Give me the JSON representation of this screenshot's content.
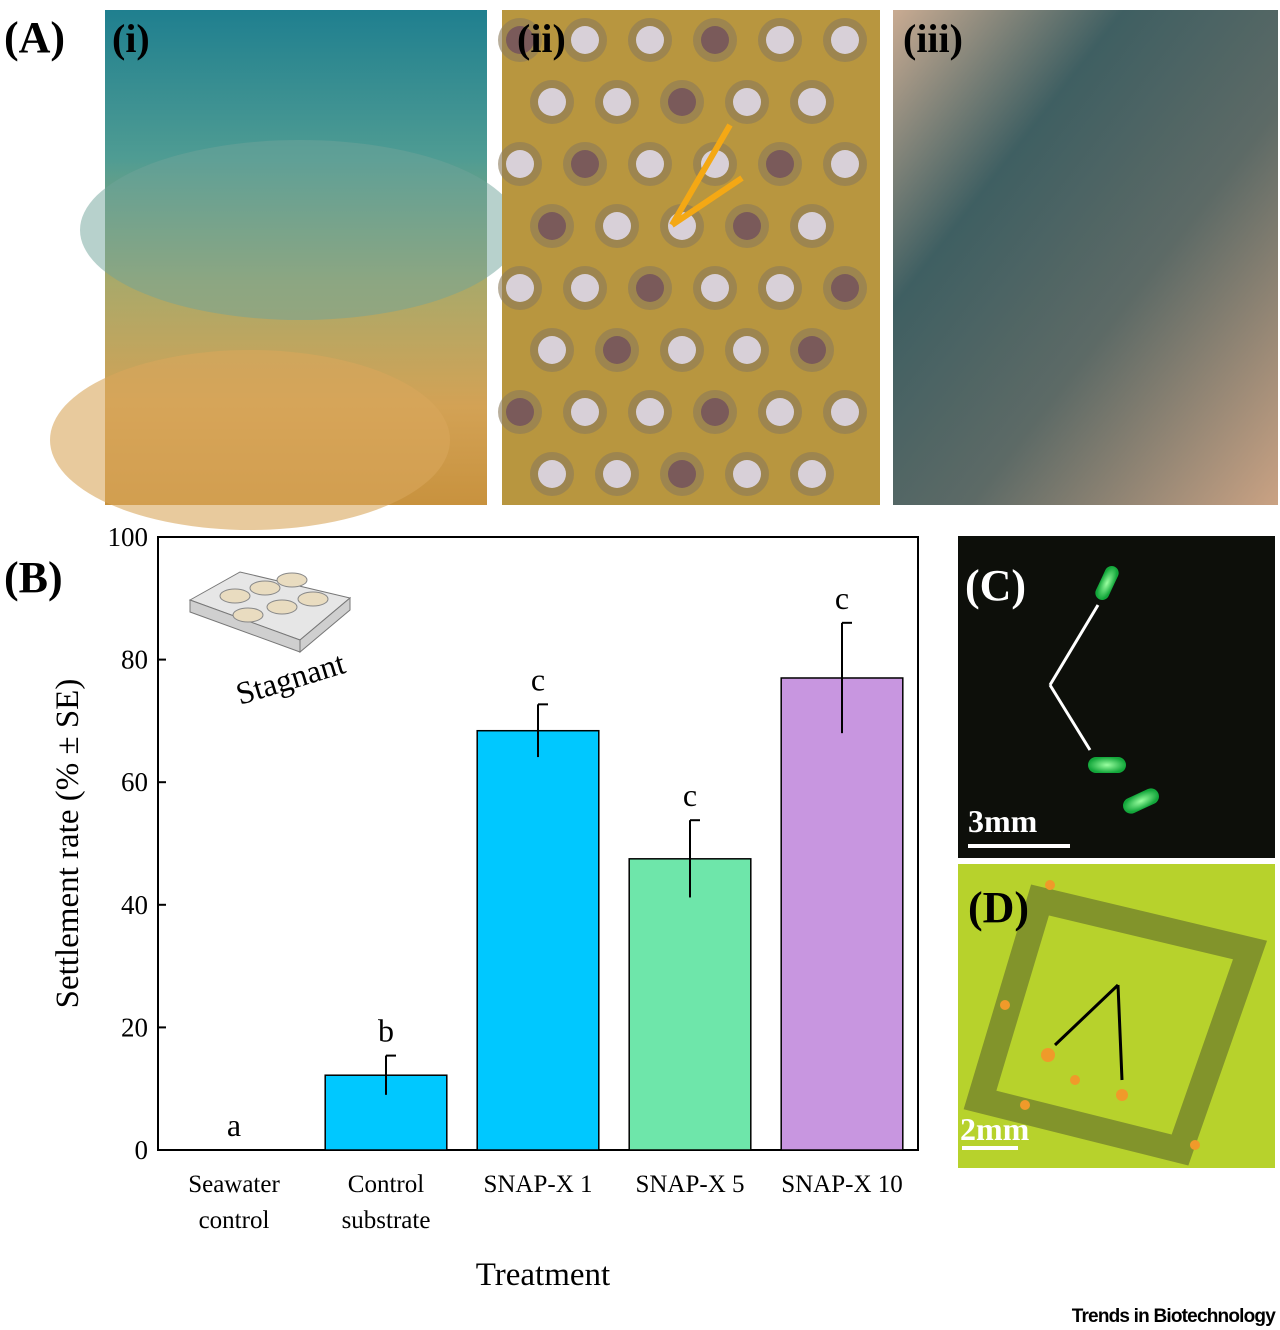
{
  "panels": {
    "A": "(A)",
    "A_i": "(i)",
    "A_ii": "(ii)",
    "A_iii": "(iii)",
    "B": "(B)",
    "C": "(C)",
    "D": "(D)"
  },
  "scale_bars": {
    "C": "3mm",
    "D": "2mm"
  },
  "inset_label": "Stagnant",
  "footer": "Trends in Biotechnology",
  "chart_data": {
    "type": "bar",
    "ylabel": "Settlement rate (% ± SE)",
    "xlabel": "Treatment",
    "categories": [
      [
        "Seawater",
        "control"
      ],
      [
        "Control",
        "substrate"
      ],
      [
        "SNAP-X 1"
      ],
      [
        "SNAP-X 5"
      ],
      [
        "SNAP-X 10"
      ]
    ],
    "values": [
      0,
      12.2,
      68.4,
      47.5,
      77
    ],
    "errors": [
      0,
      3.2,
      4.3,
      6.3,
      9
    ],
    "significance": [
      "a",
      "b",
      "c",
      "c",
      "c"
    ],
    "colors": [
      "#000000",
      "#00c8ff",
      "#00c8ff",
      "#6ee6aa",
      "#c896e0"
    ],
    "ylim": [
      0,
      100
    ],
    "yticks": [
      0,
      20,
      40,
      60,
      80,
      100
    ]
  }
}
